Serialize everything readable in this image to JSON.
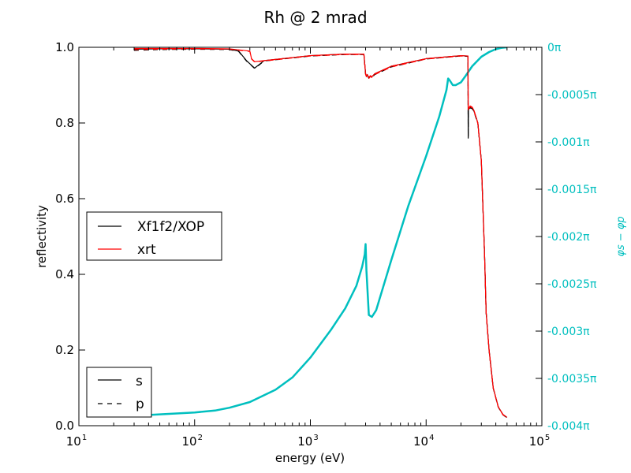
{
  "chart_data": {
    "type": "line",
    "title": "Rh @ 2 mrad",
    "xlabel": "energy (eV)",
    "ylabel": "reflectivity",
    "y2label": "φs − φp",
    "xscale": "log",
    "xlim": [
      10,
      100000
    ],
    "ylim": [
      0.0,
      1.0
    ],
    "y2lim": [
      -0.004,
      0.0
    ],
    "x_ticks": [
      {
        "value": 10,
        "base": "10",
        "exp": "1"
      },
      {
        "value": 100,
        "base": "10",
        "exp": "2"
      },
      {
        "value": 1000,
        "base": "10",
        "exp": "3"
      },
      {
        "value": 10000,
        "base": "10",
        "exp": "4"
      },
      {
        "value": 100000,
        "base": "10",
        "exp": "5"
      }
    ],
    "y_ticks": [
      "0.0",
      "0.2",
      "0.4",
      "0.6",
      "0.8",
      "1.0"
    ],
    "y_tick_values": [
      0.0,
      0.2,
      0.4,
      0.6,
      0.8,
      1.0
    ],
    "y2_ticks": [
      "0π",
      "-0.0005π",
      "-0.001π",
      "-0.0015π",
      "-0.002π",
      "-0.0025π",
      "-0.003π",
      "-0.0035π",
      "-0.004π"
    ],
    "y2_tick_values": [
      0,
      -0.0005,
      -0.001,
      -0.0015,
      -0.002,
      -0.0025,
      -0.003,
      -0.0035,
      -0.004
    ],
    "grid": false,
    "legend_source": {
      "placement": "middle-left",
      "entries": [
        {
          "label": "Xf1f2/XOP",
          "color": "#000000"
        },
        {
          "label": "xrt",
          "color": "#ff0000"
        }
      ]
    },
    "legend_polarization": {
      "placement": "bottom-left",
      "entries": [
        {
          "label": "s",
          "style": "solid"
        },
        {
          "label": "p",
          "style": "dashed"
        }
      ]
    },
    "colors": {
      "xop": "#000000",
      "xrt": "#ff0000",
      "phase": "#00bfbf",
      "right_axis": "#00bfbf"
    },
    "series": [
      {
        "name": "Xf1f2/XOP",
        "polarization": "s",
        "axis": "left",
        "x": [
          30,
          50,
          100,
          200,
          240,
          280,
          330,
          400,
          500,
          1000,
          2000,
          2900,
          3000,
          3050,
          3100,
          3200,
          3300,
          3400,
          3600,
          5000,
          10000,
          20000,
          23000,
          23100,
          23200,
          24000,
          25000,
          26000,
          28000,
          30000,
          32000,
          33000,
          35000,
          38000,
          42000,
          46000,
          50000
        ],
        "y": [
          0.995,
          0.996,
          0.996,
          0.995,
          0.99,
          0.965,
          0.945,
          0.965,
          0.968,
          0.978,
          0.982,
          0.982,
          0.93,
          0.924,
          0.928,
          0.92,
          0.925,
          0.922,
          0.93,
          0.95,
          0.97,
          0.978,
          0.977,
          0.76,
          0.835,
          0.842,
          0.84,
          0.83,
          0.8,
          0.7,
          0.45,
          0.3,
          0.2,
          0.1,
          0.05,
          0.03,
          0.022
        ]
      },
      {
        "name": "Xf1f2/XOP",
        "polarization": "p",
        "axis": "left",
        "x": [
          30,
          50,
          100,
          200,
          240,
          280,
          330,
          400,
          500,
          1000,
          2000,
          2900,
          3000,
          3050,
          3100,
          3200,
          3300,
          3400,
          3600,
          5000,
          10000,
          20000,
          23000,
          23100,
          23200,
          24000,
          25000,
          26000,
          28000,
          30000,
          32000,
          33000,
          35000,
          38000,
          42000,
          46000,
          50000
        ],
        "y": [
          0.992,
          0.994,
          0.995,
          0.994,
          0.989,
          0.964,
          0.944,
          0.964,
          0.967,
          0.977,
          0.981,
          0.981,
          0.928,
          0.922,
          0.926,
          0.918,
          0.923,
          0.92,
          0.928,
          0.948,
          0.969,
          0.977,
          0.976,
          0.762,
          0.833,
          0.84,
          0.838,
          0.828,
          0.798,
          0.698,
          0.448,
          0.298,
          0.198,
          0.099,
          0.049,
          0.029,
          0.021
        ]
      },
      {
        "name": "xrt",
        "polarization": "s",
        "axis": "left",
        "x": [
          30,
          50,
          100,
          200,
          300,
          310,
          330,
          400,
          500,
          1000,
          2000,
          2900,
          3000,
          3050,
          3100,
          3200,
          3300,
          3400,
          3600,
          5000,
          10000,
          20000,
          23000,
          23100,
          23200,
          24000,
          25000,
          26000,
          28000,
          30000,
          32000,
          33000,
          35000,
          38000,
          42000,
          46000,
          50000
        ],
        "y": [
          0.997,
          0.997,
          0.997,
          0.996,
          0.99,
          0.97,
          0.962,
          0.965,
          0.968,
          0.978,
          0.982,
          0.982,
          0.93,
          0.924,
          0.928,
          0.92,
          0.925,
          0.922,
          0.93,
          0.95,
          0.97,
          0.978,
          0.977,
          0.835,
          0.838,
          0.845,
          0.842,
          0.832,
          0.8,
          0.7,
          0.45,
          0.3,
          0.2,
          0.1,
          0.05,
          0.03,
          0.022
        ]
      },
      {
        "name": "xrt",
        "polarization": "p",
        "axis": "left",
        "x": [
          30,
          50,
          100,
          200,
          300,
          310,
          330,
          400,
          500,
          1000,
          2000,
          2900,
          3000,
          3050,
          3100,
          3200,
          3300,
          3400,
          3600,
          5000,
          10000,
          20000,
          23000,
          23100,
          23200,
          24000,
          25000,
          26000,
          28000,
          30000,
          32000,
          33000,
          35000,
          38000,
          42000,
          46000,
          50000
        ],
        "y": [
          0.994,
          0.995,
          0.996,
          0.995,
          0.989,
          0.969,
          0.961,
          0.964,
          0.967,
          0.977,
          0.981,
          0.981,
          0.928,
          0.922,
          0.926,
          0.918,
          0.923,
          0.92,
          0.928,
          0.948,
          0.969,
          0.977,
          0.976,
          0.833,
          0.836,
          0.843,
          0.84,
          0.83,
          0.798,
          0.698,
          0.448,
          0.298,
          0.198,
          0.099,
          0.049,
          0.029,
          0.021
        ]
      },
      {
        "name": "φs − φp",
        "axis": "right",
        "x": [
          30,
          50,
          100,
          150,
          200,
          300,
          500,
          700,
          1000,
          1500,
          2000,
          2500,
          2800,
          2950,
          3000,
          3050,
          3200,
          3400,
          3700,
          5000,
          7000,
          10000,
          13000,
          15000,
          15500,
          16000,
          17000,
          18000,
          20000,
          22000,
          25000,
          30000,
          35000,
          40000,
          45000,
          50000
        ],
        "y": [
          -0.003895,
          -0.00388,
          -0.00386,
          -0.00384,
          -0.00381,
          -0.00375,
          -0.00362,
          -0.00349,
          -0.00328,
          -0.00299,
          -0.00276,
          -0.00252,
          -0.00232,
          -0.00219,
          -0.00208,
          -0.00236,
          -0.00283,
          -0.00285,
          -0.00278,
          -0.00225,
          -0.00168,
          -0.00115,
          -0.00073,
          -0.00045,
          -0.00033,
          -0.00035,
          -0.0004,
          -0.0004,
          -0.00037,
          -0.0003,
          -0.0002,
          -0.0001,
          -5e-05,
          -2e-05,
          -5e-06,
          0.0
        ]
      }
    ]
  }
}
